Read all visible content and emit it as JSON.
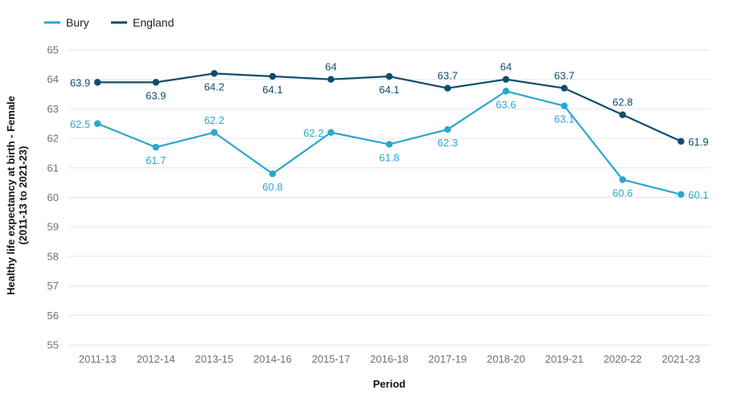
{
  "chart_data": {
    "type": "line",
    "categories": [
      "2011-13",
      "2012-14",
      "2013-15",
      "2014-16",
      "2015-17",
      "2016-18",
      "2017-19",
      "2018-20",
      "2019-21",
      "2020-22",
      "2021-23"
    ],
    "series": [
      {
        "name": "Bury",
        "color": "#2aa7cf",
        "values": [
          62.5,
          61.7,
          62.2,
          60.8,
          62.2,
          61.8,
          62.3,
          63.6,
          63.1,
          60.6,
          60.1
        ]
      },
      {
        "name": "England",
        "color": "#0f4c6e",
        "values": [
          63.9,
          63.9,
          64.2,
          64.1,
          64,
          64.1,
          63.7,
          64,
          63.7,
          62.8,
          61.9
        ]
      }
    ],
    "xlabel": "Period",
    "ylabel_lines": [
      "Healthy life expectancy at birth - Female",
      "(2011-13 to 2021-23)"
    ],
    "ylim": [
      55,
      65
    ],
    "yticks": [
      55,
      56,
      57,
      58,
      59,
      60,
      61,
      62,
      63,
      64,
      65
    ],
    "grid": true,
    "legend_position": "top-left"
  }
}
